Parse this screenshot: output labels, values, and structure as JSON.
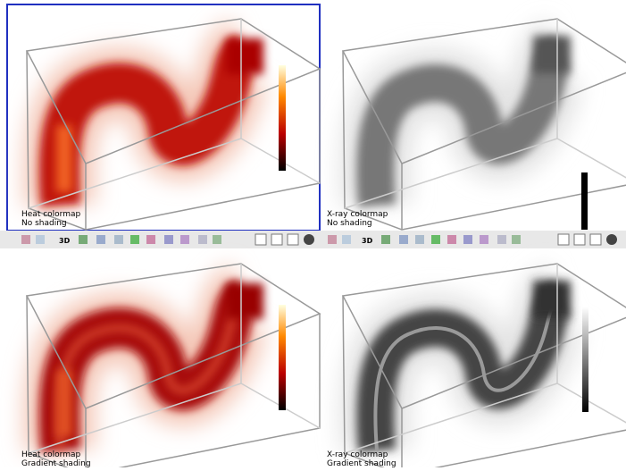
{
  "panels": [
    {
      "caption": [
        "Heat colormap",
        "No shading"
      ]
    },
    {
      "caption": [
        "X-ray colormap",
        "No shading"
      ]
    },
    {
      "caption": [
        "Heat colormap",
        "Gradient shading"
      ]
    },
    {
      "caption": [
        "X-ray colormap",
        "Gradient shading"
      ]
    }
  ],
  "toolbars": [
    {
      "mode_label": "3D"
    },
    {
      "mode_label": "3D"
    }
  ]
}
